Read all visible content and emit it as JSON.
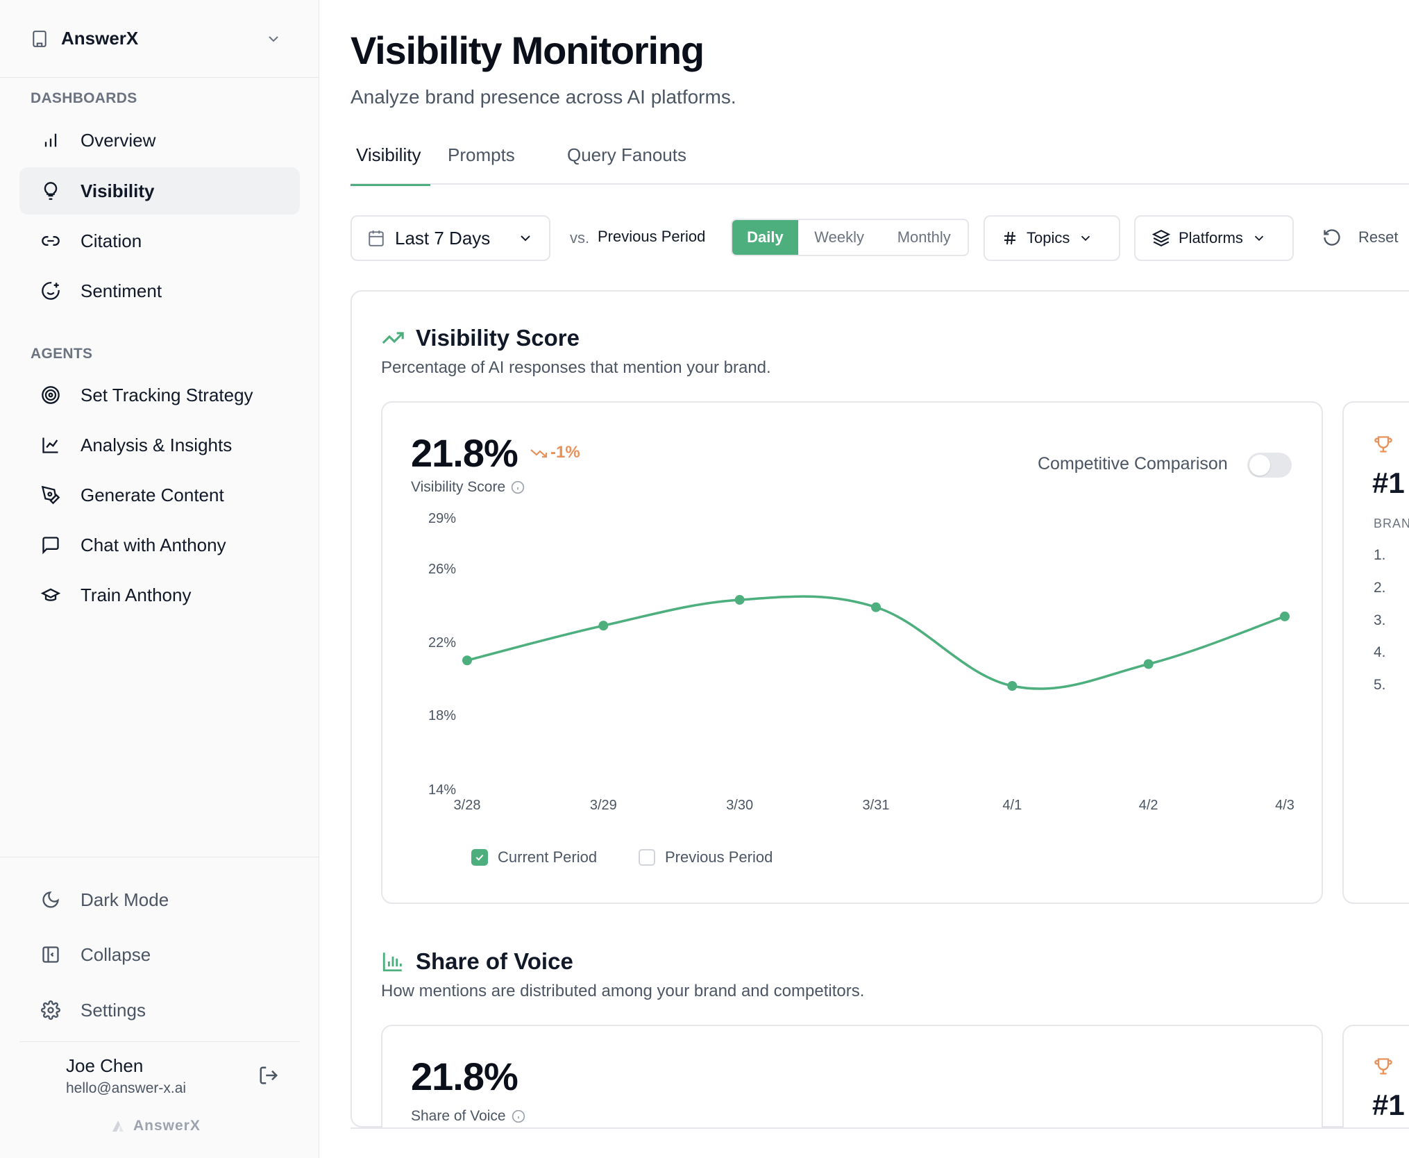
{
  "sidebar": {
    "org_name": "AnswerX",
    "sections": [
      {
        "label": "DASHBOARDS"
      },
      {
        "label": "AGENTS"
      }
    ],
    "dashboards": [
      {
        "label": "Overview",
        "icon": "bar-chart-icon"
      },
      {
        "label": "Visibility",
        "icon": "lightbulb-icon",
        "active": true
      },
      {
        "label": "Citation",
        "icon": "link-icon"
      },
      {
        "label": "Sentiment",
        "icon": "smile-plus-icon"
      }
    ],
    "agents": [
      {
        "label": "Set Tracking Strategy",
        "icon": "target-icon"
      },
      {
        "label": "Analysis & Insights",
        "icon": "line-chart-icon"
      },
      {
        "label": "Generate Content",
        "icon": "pen-tool-icon"
      },
      {
        "label": "Chat with Anthony",
        "icon": "message-square-icon"
      },
      {
        "label": "Train Anthony",
        "icon": "graduation-cap-icon"
      }
    ],
    "bottom": [
      {
        "label": "Dark Mode",
        "icon": "moon-icon"
      },
      {
        "label": "Collapse",
        "icon": "panel-left-icon"
      },
      {
        "label": "Settings",
        "icon": "gear-icon"
      }
    ],
    "user": {
      "name": "Joe Chen",
      "email": "hello@answer-x.ai"
    },
    "footer_brand": "AnswerX"
  },
  "header": {
    "title": "Visibility Monitoring",
    "subtitle": "Analyze brand presence across AI platforms."
  },
  "tabs": [
    {
      "label": "Visibility",
      "active": true
    },
    {
      "label": "Prompts"
    },
    {
      "label": "Query Fanouts"
    }
  ],
  "filters": {
    "date_range": "Last 7 Days",
    "vs_label": "vs.",
    "compare_period": "Previous Period",
    "granularity": [
      "Daily",
      "Weekly",
      "Monthly"
    ],
    "granularity_selected": "Daily",
    "topics_label": "Topics",
    "platforms_label": "Platforms",
    "reset_label": "Reset"
  },
  "visibility_score": {
    "heading": "Visibility Score",
    "description": "Percentage of AI responses that mention your brand.",
    "value": "21.8%",
    "delta": "-1%",
    "metric_label": "Visibility Score",
    "competitive_label": "Competitive Comparison",
    "competitive_on": false,
    "legend_current": "Current Period",
    "legend_previous": "Previous Period"
  },
  "rank_card": {
    "rank_text": "#1",
    "list_header": "BRAN",
    "list_numbers": [
      "1.",
      "2.",
      "3.",
      "4.",
      "5."
    ]
  },
  "share_of_voice": {
    "heading": "Share of Voice",
    "description": "How mentions are distributed among your brand and competitors.",
    "value": "21.8%",
    "metric_label": "Share of Voice",
    "rank_text": "#1"
  },
  "colors": {
    "accent": "#4caf7d",
    "delta_negative": "#e8925a",
    "trophy": "#e8925a"
  },
  "chart_data": {
    "type": "line",
    "title": "",
    "xlabel": "",
    "ylabel": "",
    "categories": [
      "3/28",
      "3/29",
      "3/30",
      "3/31",
      "4/1",
      "4/2",
      "4/3"
    ],
    "y_ticks": [
      "29%",
      "26%",
      "22%",
      "18%",
      "14%"
    ],
    "ylim": [
      14,
      29
    ],
    "series": [
      {
        "name": "Current Period",
        "values": [
          21.0,
          22.9,
          24.3,
          23.9,
          19.6,
          20.8,
          23.4
        ]
      }
    ],
    "grid": false,
    "legend": "bottom"
  }
}
